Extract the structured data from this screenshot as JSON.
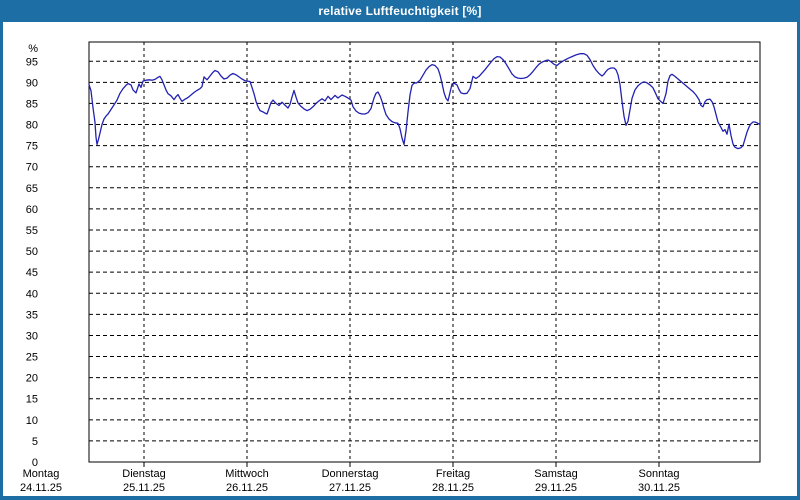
{
  "window": {
    "title": "relative Luftfeuchtigkeit [%]"
  },
  "colors": {
    "titlebar": "#1c6ea4",
    "border": "#1c6ea4",
    "line": "#2222b2",
    "grid": "#000000",
    "text": "#000000",
    "background": "#ffffff"
  },
  "chart_data": {
    "type": "line",
    "title": "relative Luftfeuchtigkeit [%]",
    "unit_label": "%",
    "ylim": [
      0,
      100
    ],
    "yticks": [
      0,
      5,
      10,
      15,
      20,
      25,
      30,
      35,
      40,
      45,
      50,
      55,
      60,
      65,
      70,
      75,
      80,
      85,
      90,
      95
    ],
    "grid": "dashed",
    "legend_position": "none",
    "x_axis_days": [
      {
        "name": "Montag",
        "date": "24.11.25"
      },
      {
        "name": "Dienstag",
        "date": "25.11.25"
      },
      {
        "name": "Mittwoch",
        "date": "26.11.25"
      },
      {
        "name": "Donnerstag",
        "date": "27.11.25"
      },
      {
        "name": "Freitag",
        "date": "28.11.25"
      },
      {
        "name": "Samstag",
        "date": "29.11.25"
      },
      {
        "name": "Sonntag",
        "date": "30.11.25"
      }
    ],
    "series": [
      {
        "name": "relative Luftfeuchtigkeit",
        "color": "#2222b2",
        "x_unit": "days since Montag 24.11.25 00:00",
        "points": [
          [
            0.466,
            89.5
          ],
          [
            0.485,
            88
          ],
          [
            0.505,
            84
          ],
          [
            0.524,
            80.5
          ],
          [
            0.534,
            77
          ],
          [
            0.544,
            75.3
          ],
          [
            0.558,
            76.5
          ],
          [
            0.573,
            78
          ],
          [
            0.592,
            80
          ],
          [
            0.612,
            81.3
          ],
          [
            0.631,
            82
          ],
          [
            0.65,
            82.5
          ],
          [
            0.67,
            83.2
          ],
          [
            0.699,
            84.3
          ],
          [
            0.738,
            85.8
          ],
          [
            0.767,
            87.4
          ],
          [
            0.796,
            88.5
          ],
          [
            0.825,
            89.3
          ],
          [
            0.845,
            89.7
          ],
          [
            0.874,
            89.4
          ],
          [
            0.893,
            88.2
          ],
          [
            0.922,
            87.5
          ],
          [
            0.951,
            89.6
          ],
          [
            0.971,
            88.8
          ],
          [
            0.99,
            90.3
          ],
          [
            1.019,
            90.5
          ],
          [
            1.049,
            90.6
          ],
          [
            1.078,
            90.5
          ],
          [
            1.107,
            90.7
          ],
          [
            1.136,
            91.2
          ],
          [
            1.155,
            91.4
          ],
          [
            1.175,
            90.6
          ],
          [
            1.194,
            89.4
          ],
          [
            1.214,
            88.2
          ],
          [
            1.233,
            87.3
          ],
          [
            1.262,
            86.8
          ],
          [
            1.291,
            85.9
          ],
          [
            1.311,
            86.6
          ],
          [
            1.33,
            87.1
          ],
          [
            1.35,
            86.2
          ],
          [
            1.369,
            85.5
          ],
          [
            1.398,
            86
          ],
          [
            1.427,
            86.4
          ],
          [
            1.456,
            87
          ],
          [
            1.485,
            87.6
          ],
          [
            1.515,
            88.1
          ],
          [
            1.544,
            88.5
          ],
          [
            1.563,
            89
          ],
          [
            1.583,
            91.3
          ],
          [
            1.612,
            90.6
          ],
          [
            1.641,
            91.5
          ],
          [
            1.67,
            92.4
          ],
          [
            1.689,
            92.8
          ],
          [
            1.718,
            92.5
          ],
          [
            1.748,
            91.5
          ],
          [
            1.777,
            90.8
          ],
          [
            1.806,
            91
          ],
          [
            1.835,
            91.7
          ],
          [
            1.864,
            92.1
          ],
          [
            1.893,
            91.8
          ],
          [
            1.922,
            91.3
          ],
          [
            1.951,
            90.8
          ],
          [
            1.981,
            90.4
          ],
          [
            2.0,
            90.3
          ],
          [
            2.029,
            90.2
          ],
          [
            2.049,
            88.8
          ],
          [
            2.068,
            87.3
          ],
          [
            2.087,
            85.5
          ],
          [
            2.107,
            84.2
          ],
          [
            2.126,
            83.3
          ],
          [
            2.155,
            83
          ],
          [
            2.175,
            82.7
          ],
          [
            2.194,
            82.5
          ],
          [
            2.214,
            83.8
          ],
          [
            2.233,
            85.2
          ],
          [
            2.252,
            85.8
          ],
          [
            2.282,
            85
          ],
          [
            2.311,
            84.5
          ],
          [
            2.34,
            85.3
          ],
          [
            2.369,
            84.6
          ],
          [
            2.398,
            83.9
          ],
          [
            2.417,
            84.8
          ],
          [
            2.437,
            86.5
          ],
          [
            2.456,
            88.1
          ],
          [
            2.476,
            86.5
          ],
          [
            2.495,
            85.1
          ],
          [
            2.524,
            84.3
          ],
          [
            2.553,
            83.7
          ],
          [
            2.583,
            83.3
          ],
          [
            2.612,
            83.6
          ],
          [
            2.641,
            84.2
          ],
          [
            2.67,
            85
          ],
          [
            2.699,
            85.6
          ],
          [
            2.728,
            86.1
          ],
          [
            2.757,
            85.6
          ],
          [
            2.786,
            86.7
          ],
          [
            2.816,
            85.9
          ],
          [
            2.854,
            86.9
          ],
          [
            2.883,
            86.3
          ],
          [
            2.922,
            87
          ],
          [
            2.951,
            86.7
          ],
          [
            2.981,
            86.3
          ],
          [
            3.01,
            85.8
          ],
          [
            3.029,
            84.2
          ],
          [
            3.058,
            83.2
          ],
          [
            3.087,
            82.7
          ],
          [
            3.117,
            82.5
          ],
          [
            3.146,
            82.5
          ],
          [
            3.175,
            82.8
          ],
          [
            3.204,
            83.8
          ],
          [
            3.233,
            86.3
          ],
          [
            3.252,
            87.4
          ],
          [
            3.272,
            87.7
          ],
          [
            3.291,
            86.8
          ],
          [
            3.311,
            85.5
          ],
          [
            3.33,
            83.8
          ],
          [
            3.35,
            82.3
          ],
          [
            3.379,
            81.3
          ],
          [
            3.408,
            80.7
          ],
          [
            3.437,
            80.4
          ],
          [
            3.466,
            80.3
          ],
          [
            3.485,
            79
          ],
          [
            3.505,
            76.8
          ],
          [
            3.524,
            75.3
          ],
          [
            3.544,
            78.5
          ],
          [
            3.563,
            83
          ],
          [
            3.583,
            87
          ],
          [
            3.602,
            89.3
          ],
          [
            3.621,
            89.8
          ],
          [
            3.65,
            89.9
          ],
          [
            3.68,
            90.5
          ],
          [
            3.709,
            91.7
          ],
          [
            3.738,
            92.9
          ],
          [
            3.767,
            93.7
          ],
          [
            3.796,
            94.2
          ],
          [
            3.825,
            94
          ],
          [
            3.854,
            93.2
          ],
          [
            3.874,
            91.8
          ],
          [
            3.893,
            89.8
          ],
          [
            3.913,
            87.6
          ],
          [
            3.932,
            86.2
          ],
          [
            3.951,
            85.6
          ],
          [
            3.971,
            87.6
          ],
          [
            3.99,
            89.6
          ],
          [
            4.01,
            89.8
          ],
          [
            4.039,
            89.4
          ],
          [
            4.058,
            88.3
          ],
          [
            4.078,
            87.5
          ],
          [
            4.107,
            87.3
          ],
          [
            4.136,
            87.4
          ],
          [
            4.165,
            88.5
          ],
          [
            4.194,
            91.4
          ],
          [
            4.223,
            90.9
          ],
          [
            4.252,
            91.4
          ],
          [
            4.282,
            92.2
          ],
          [
            4.311,
            93
          ],
          [
            4.34,
            93.9
          ],
          [
            4.369,
            94.8
          ],
          [
            4.398,
            95.6
          ],
          [
            4.427,
            96.1
          ],
          [
            4.456,
            96
          ],
          [
            4.485,
            95.4
          ],
          [
            4.515,
            94.4
          ],
          [
            4.544,
            93.2
          ],
          [
            4.573,
            92
          ],
          [
            4.602,
            91.3
          ],
          [
            4.631,
            91
          ],
          [
            4.66,
            90.9
          ],
          [
            4.689,
            91
          ],
          [
            4.718,
            91.2
          ],
          [
            4.748,
            91.8
          ],
          [
            4.777,
            92.6
          ],
          [
            4.806,
            93.5
          ],
          [
            4.835,
            94.3
          ],
          [
            4.864,
            94.8
          ],
          [
            4.893,
            95.1
          ],
          [
            4.922,
            95.3
          ],
          [
            4.951,
            94.9
          ],
          [
            4.981,
            94.3
          ],
          [
            5.01,
            94
          ],
          [
            5.039,
            94.6
          ],
          [
            5.078,
            95.2
          ],
          [
            5.117,
            95.7
          ],
          [
            5.155,
            96.1
          ],
          [
            5.194,
            96.5
          ],
          [
            5.233,
            96.8
          ],
          [
            5.272,
            96.8
          ],
          [
            5.301,
            96.4
          ],
          [
            5.33,
            95.4
          ],
          [
            5.359,
            94
          ],
          [
            5.388,
            92.9
          ],
          [
            5.417,
            92.1
          ],
          [
            5.447,
            91.5
          ],
          [
            5.466,
            91.9
          ],
          [
            5.485,
            92.6
          ],
          [
            5.505,
            93.1
          ],
          [
            5.534,
            93.4
          ],
          [
            5.563,
            93.4
          ],
          [
            5.583,
            93
          ],
          [
            5.602,
            91.8
          ],
          [
            5.621,
            89.5
          ],
          [
            5.641,
            85.5
          ],
          [
            5.66,
            82
          ],
          [
            5.68,
            79.8
          ],
          [
            5.699,
            80.8
          ],
          [
            5.718,
            83.5
          ],
          [
            5.738,
            86.2
          ],
          [
            5.767,
            88.2
          ],
          [
            5.796,
            89.2
          ],
          [
            5.825,
            89.8
          ],
          [
            5.854,
            90.1
          ],
          [
            5.883,
            89.9
          ],
          [
            5.913,
            89.4
          ],
          [
            5.942,
            88.7
          ],
          [
            5.971,
            87.2
          ],
          [
            5.99,
            86.1
          ],
          [
            6.019,
            85.4
          ],
          [
            6.039,
            85
          ],
          [
            6.068,
            87.3
          ],
          [
            6.087,
            90.3
          ],
          [
            6.107,
            91.6
          ],
          [
            6.126,
            91.9
          ],
          [
            6.155,
            91.4
          ],
          [
            6.184,
            90.8
          ],
          [
            6.214,
            90.2
          ],
          [
            6.243,
            89.6
          ],
          [
            6.272,
            89
          ],
          [
            6.301,
            88.4
          ],
          [
            6.33,
            87.8
          ],
          [
            6.359,
            87
          ],
          [
            6.388,
            85.9
          ],
          [
            6.408,
            84.5
          ],
          [
            6.427,
            84.2
          ],
          [
            6.447,
            85.4
          ],
          [
            6.466,
            85.9
          ],
          [
            6.495,
            86
          ],
          [
            6.515,
            85.4
          ],
          [
            6.534,
            84.2
          ],
          [
            6.553,
            82.4
          ],
          [
            6.573,
            80.6
          ],
          [
            6.602,
            79.3
          ],
          [
            6.621,
            78.4
          ],
          [
            6.641,
            78.8
          ],
          [
            6.66,
            77.7
          ],
          [
            6.68,
            80.1
          ],
          [
            6.699,
            77.4
          ],
          [
            6.718,
            75.4
          ],
          [
            6.738,
            74.6
          ],
          [
            6.767,
            74.3
          ],
          [
            6.796,
            74.5
          ],
          [
            6.816,
            75
          ],
          [
            6.835,
            76.6
          ],
          [
            6.854,
            78.2
          ],
          [
            6.874,
            79.4
          ],
          [
            6.893,
            80.2
          ],
          [
            6.913,
            80.6
          ],
          [
            6.932,
            80.6
          ],
          [
            6.951,
            80.4
          ],
          [
            6.971,
            80.1
          ],
          [
            6.981,
            80.3
          ]
        ]
      }
    ]
  }
}
